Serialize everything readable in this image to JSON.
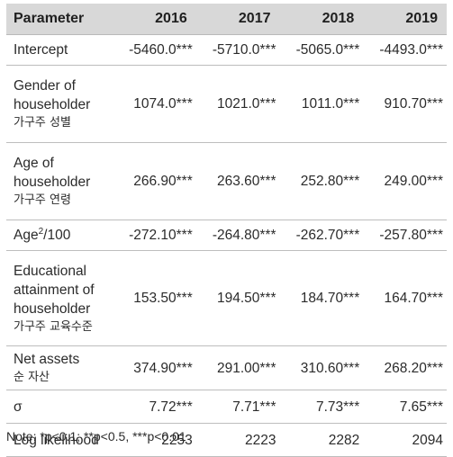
{
  "header": {
    "parameter": "Parameter",
    "years": [
      "2016",
      "2017",
      "2018",
      "2019"
    ]
  },
  "rows": [
    {
      "label_en": "Intercept",
      "label_kr": "",
      "values": [
        "-5460.0***",
        "-5710.0***",
        "-5065.0***",
        "-4493.0***"
      ]
    },
    {
      "label_en": "Gender of householder",
      "label_kr": "가구주 성별",
      "values": [
        "1074.0***",
        "1021.0***",
        "1011.0***",
        "910.70***"
      ]
    },
    {
      "label_en": "Age of householder",
      "label_kr": "가구주 연령",
      "values": [
        "266.90***",
        "263.60***",
        "252.80***",
        "249.00***"
      ]
    },
    {
      "label_en_pre": "Age",
      "label_sup": "2",
      "label_en_post": "/100",
      "values": [
        "-272.10***",
        "-264.80***",
        "-262.70***",
        "-257.80***"
      ]
    },
    {
      "label_en": "Educational attainment of householder",
      "label_kr": "가구주 교육수준",
      "values": [
        "153.50***",
        "194.50***",
        "184.70***",
        "164.70***"
      ]
    },
    {
      "label_en": "Net assets",
      "label_kr": "순 자산",
      "values": [
        "374.90***",
        "291.00***",
        "310.60***",
        "268.20***"
      ]
    },
    {
      "label_en": "σ",
      "label_kr": "",
      "values": [
        "7.72***",
        "7.71***",
        "7.73***",
        "7.65***"
      ]
    },
    {
      "label_en": "Log likelihood",
      "label_kr": "",
      "values": [
        "2253",
        "2223",
        "2282",
        "2094"
      ]
    }
  ],
  "note": "Note: *p<0.1; **p<0.5, ***p<0.01"
}
